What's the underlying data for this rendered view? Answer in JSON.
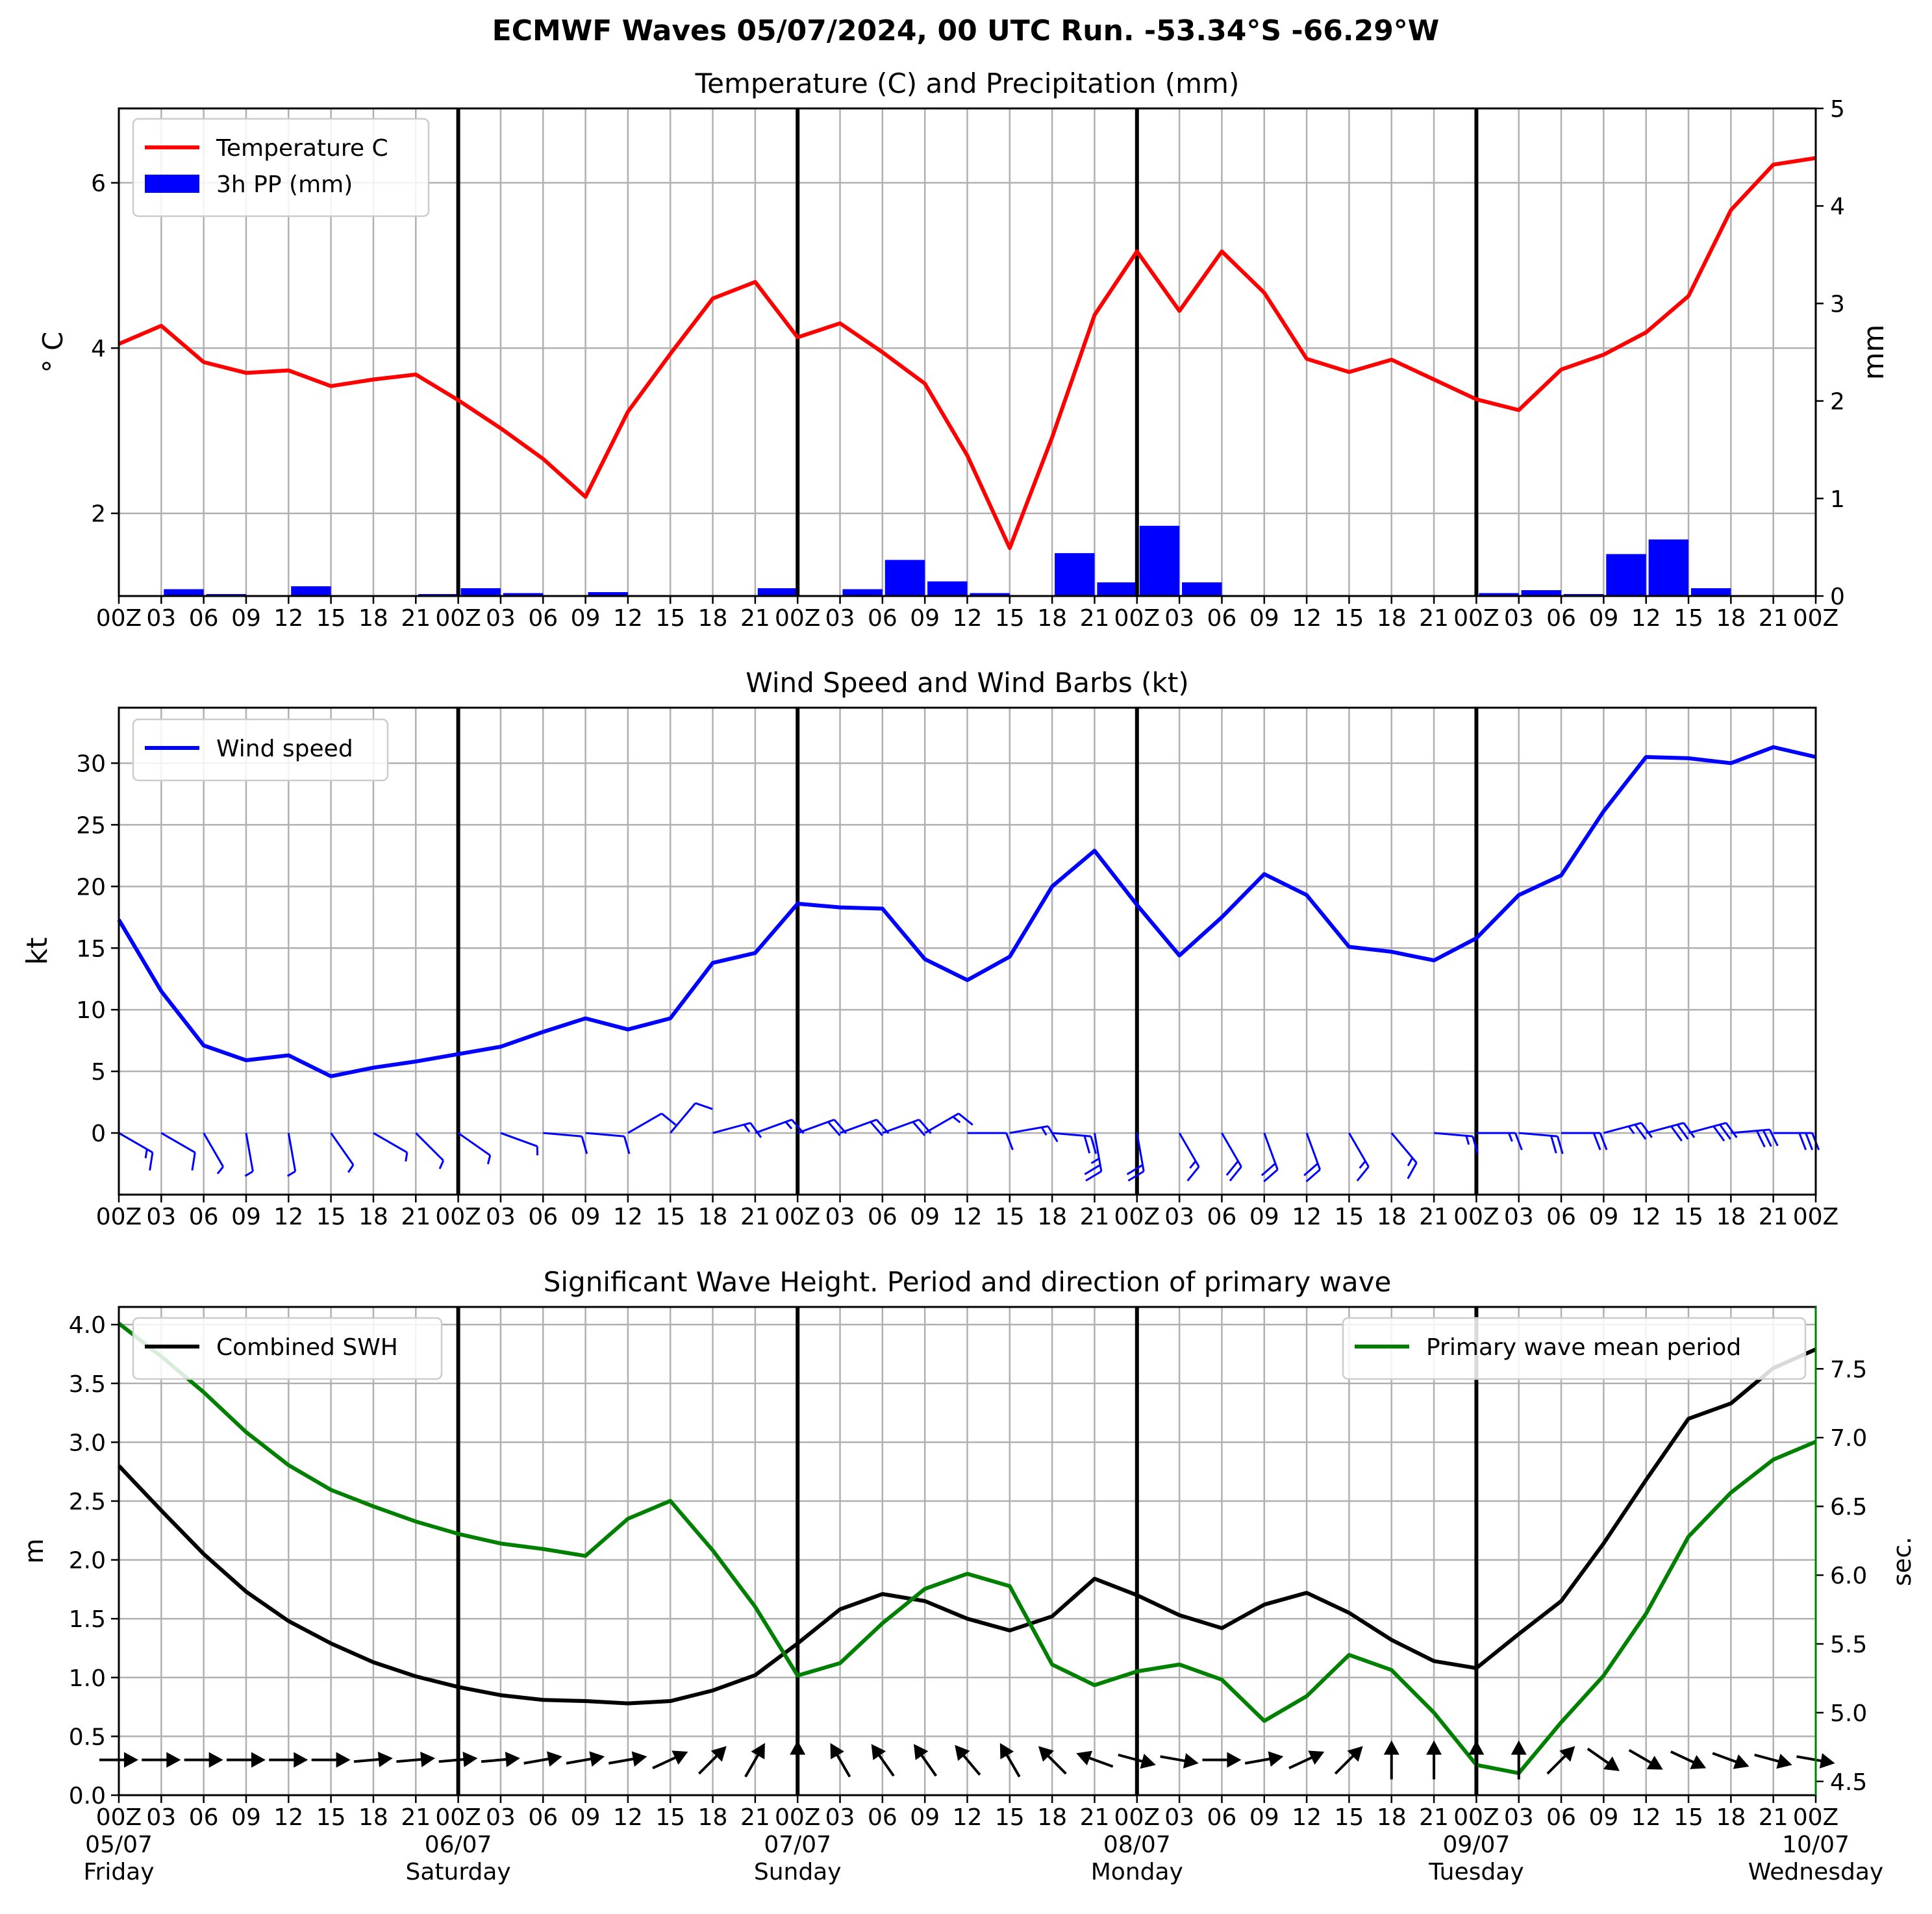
{
  "title": "ECMWF Waves 05/07/2024, 00 UTC Run. -53.34°S -66.29°W",
  "hour_labels": [
    "00Z",
    "03",
    "06",
    "09",
    "12",
    "15",
    "18",
    "21",
    "00Z",
    "03",
    "06",
    "09",
    "12",
    "15",
    "18",
    "21",
    "00Z",
    "03",
    "06",
    "09",
    "12",
    "15",
    "18",
    "21",
    "00Z",
    "03",
    "06",
    "09",
    "12",
    "15",
    "18",
    "21",
    "00Z",
    "03",
    "06",
    "09",
    "12",
    "15",
    "18",
    "21",
    "00Z"
  ],
  "day_labels": [
    {
      "date": "05/07",
      "day": "Friday"
    },
    {
      "date": "06/07",
      "day": "Saturday"
    },
    {
      "date": "07/07",
      "day": "Sunday"
    },
    {
      "date": "08/07",
      "day": "Monday"
    },
    {
      "date": "09/07",
      "day": "Tuesday"
    },
    {
      "date": "10/07",
      "day": "Wednesday"
    }
  ],
  "colors": {
    "temperature": "#ff0000",
    "precip": "#0000ff",
    "wind": "#0000ff",
    "swh": "#000000",
    "period": "#008000",
    "grid": "#b0b0b0"
  },
  "chart_data": [
    {
      "type": "line",
      "title": "Temperature (C) and Precipitation (mm)",
      "ylabel": "° C",
      "y2label": "mm",
      "ylim": [
        1.0,
        6.9
      ],
      "y2lim": [
        0,
        5
      ],
      "yticks": [
        2,
        4,
        6
      ],
      "y2ticks": [
        0,
        1,
        2,
        3,
        4,
        5
      ],
      "legend": {
        "position": "top-left",
        "entries": [
          "Temperature C",
          "3h PP (mm)"
        ]
      },
      "series": [
        {
          "name": "Temperature C",
          "type": "line",
          "values": [
            4.05,
            4.27,
            3.83,
            3.7,
            3.73,
            3.54,
            3.62,
            3.68,
            3.37,
            3.03,
            2.66,
            2.2,
            3.23,
            3.93,
            4.6,
            4.8,
            4.13,
            4.3,
            3.95,
            3.57,
            2.7,
            1.58,
            2.92,
            4.4,
            5.17,
            4.45,
            5.17,
            4.67,
            3.87,
            3.71,
            3.86,
            3.62,
            3.38,
            3.25,
            3.74,
            3.92,
            4.19,
            4.63,
            5.67,
            6.22,
            6.3
          ]
        },
        {
          "name": "3h PP (mm)",
          "type": "bar",
          "values": [
            0.0,
            0.07,
            0.02,
            0.01,
            0.1,
            0.0,
            0.0,
            0.02,
            0.08,
            0.03,
            0.0,
            0.04,
            0.0,
            0.0,
            0.0,
            0.08,
            0.01,
            0.07,
            0.37,
            0.15,
            0.03,
            0.0,
            0.44,
            0.14,
            0.72,
            0.14,
            0.01,
            0.01,
            0.0,
            0.0,
            0.0,
            0.0,
            0.03,
            0.06,
            0.02,
            0.43,
            0.58,
            0.08,
            0.0,
            0.0
          ]
        }
      ]
    },
    {
      "type": "line",
      "title": "Wind Speed and Wind Barbs (kt)",
      "ylabel": "kt",
      "ylim": [
        -5,
        34.5
      ],
      "yticks": [
        0,
        5,
        10,
        15,
        20,
        25,
        30
      ],
      "legend": {
        "position": "top-left",
        "entries": [
          "Wind speed"
        ]
      },
      "series": [
        {
          "name": "Wind speed",
          "values": [
            17.3,
            11.5,
            7.1,
            5.9,
            6.3,
            4.6,
            5.3,
            5.8,
            6.4,
            7.0,
            8.2,
            9.3,
            8.4,
            9.3,
            13.8,
            14.6,
            18.6,
            18.3,
            18.2,
            14.1,
            12.4,
            14.3,
            20.0,
            22.9,
            18.5,
            14.4,
            17.5,
            21.0,
            19.3,
            15.1,
            14.7,
            14.0,
            15.8,
            19.3,
            20.9,
            26.1,
            30.5,
            30.4,
            30.0,
            31.3,
            30.5
          ]
        }
      ],
      "barb_dir_deg": [
        300,
        300,
        330,
        350,
        350,
        325,
        300,
        315,
        305,
        290,
        275,
        275,
        240,
        220,
        255,
        250,
        250,
        250,
        250,
        240,
        270,
        260,
        275,
        350,
        350,
        330,
        330,
        340,
        340,
        330,
        320,
        275,
        270,
        275,
        270,
        255,
        255,
        255,
        265,
        270,
        285
      ]
    },
    {
      "type": "line",
      "title": "Significant Wave Height. Period and direction of primary wave",
      "ylabel": "m",
      "y2label": "sec.",
      "ylim": [
        0.0,
        4.15
      ],
      "y2lim": [
        4.4,
        7.95
      ],
      "yticks": [
        0.0,
        0.5,
        1.0,
        1.5,
        2.0,
        2.5,
        3.0,
        3.5,
        4.0
      ],
      "y2ticks": [
        4.5,
        5.0,
        5.5,
        6.0,
        6.5,
        7.0,
        7.5
      ],
      "legend": {
        "position": "top-left / top-right",
        "entries": [
          "Combined SWH",
          "Primary wave mean period"
        ]
      },
      "series": [
        {
          "name": "Combined SWH",
          "axis": "left",
          "values": [
            2.8,
            2.42,
            2.05,
            1.73,
            1.48,
            1.29,
            1.13,
            1.01,
            0.92,
            0.85,
            0.81,
            0.8,
            0.78,
            0.8,
            0.89,
            1.02,
            1.29,
            1.58,
            1.71,
            1.65,
            1.5,
            1.4,
            1.52,
            1.84,
            1.7,
            1.53,
            1.42,
            1.62,
            1.72,
            1.55,
            1.32,
            1.14,
            1.08,
            1.37,
            1.65,
            2.14,
            2.68,
            3.2,
            3.33,
            3.63,
            3.79
          ]
        },
        {
          "name": "Primary wave mean period",
          "axis": "right",
          "values": [
            7.83,
            7.59,
            7.33,
            7.04,
            6.8,
            6.62,
            6.5,
            6.39,
            6.3,
            6.23,
            6.19,
            6.14,
            6.41,
            6.54,
            6.18,
            5.77,
            5.27,
            5.36,
            5.65,
            5.9,
            6.01,
            5.92,
            5.35,
            5.2,
            5.3,
            5.35,
            5.24,
            4.94,
            5.12,
            5.42,
            5.31,
            5.0,
            4.62,
            4.56,
            4.93,
            5.27,
            5.72,
            6.28,
            6.6,
            6.84,
            6.97
          ]
        }
      ],
      "arrow_dir_deg": [
        270,
        270,
        270,
        270,
        270,
        270,
        265,
        265,
        265,
        265,
        260,
        260,
        260,
        245,
        225,
        210,
        180,
        150,
        145,
        145,
        140,
        150,
        135,
        110,
        285,
        280,
        270,
        260,
        245,
        225,
        180,
        180,
        180,
        180,
        225,
        305,
        300,
        295,
        290,
        285,
        280
      ]
    }
  ]
}
